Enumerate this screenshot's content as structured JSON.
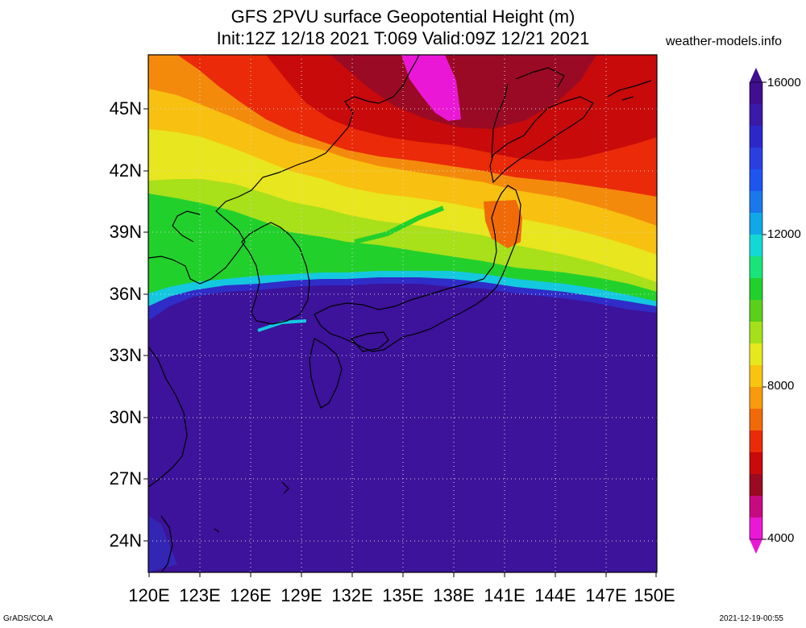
{
  "title": {
    "line1": "GFS 2PVU surface Geopotential Height (m)",
    "line2": "Init:12Z 12/18 2021 T:069 Valid:09Z 12/21 2021"
  },
  "site": "weather-models.info",
  "lat_labels": [
    "45N",
    "42N",
    "39N",
    "36N",
    "33N",
    "30N",
    "27N",
    "24N"
  ],
  "lon_labels": [
    "120E",
    "123E",
    "126E",
    "129E",
    "132E",
    "135E",
    "138E",
    "141E",
    "144E",
    "147E",
    "150E"
  ],
  "colorbar": {
    "labels": [
      "16000",
      "12000",
      "8000",
      "4000"
    ],
    "colors": [
      "#3f0f8f",
      "#3a1aa8",
      "#2c28c8",
      "#2b3fe0",
      "#1e55ee",
      "#1b78ea",
      "#10a8e6",
      "#14d8d4",
      "#18e47a",
      "#22d02c",
      "#5ad01a",
      "#a6e01a",
      "#e6e81e",
      "#f8c410",
      "#f89a0c",
      "#f06a08",
      "#ea2a08",
      "#c80a0a",
      "#9a0a22",
      "#c80a82",
      "#ea18d6"
    ]
  },
  "footer": {
    "left": "GrADS/COLA",
    "right": "2021-12-19-00:55"
  }
}
